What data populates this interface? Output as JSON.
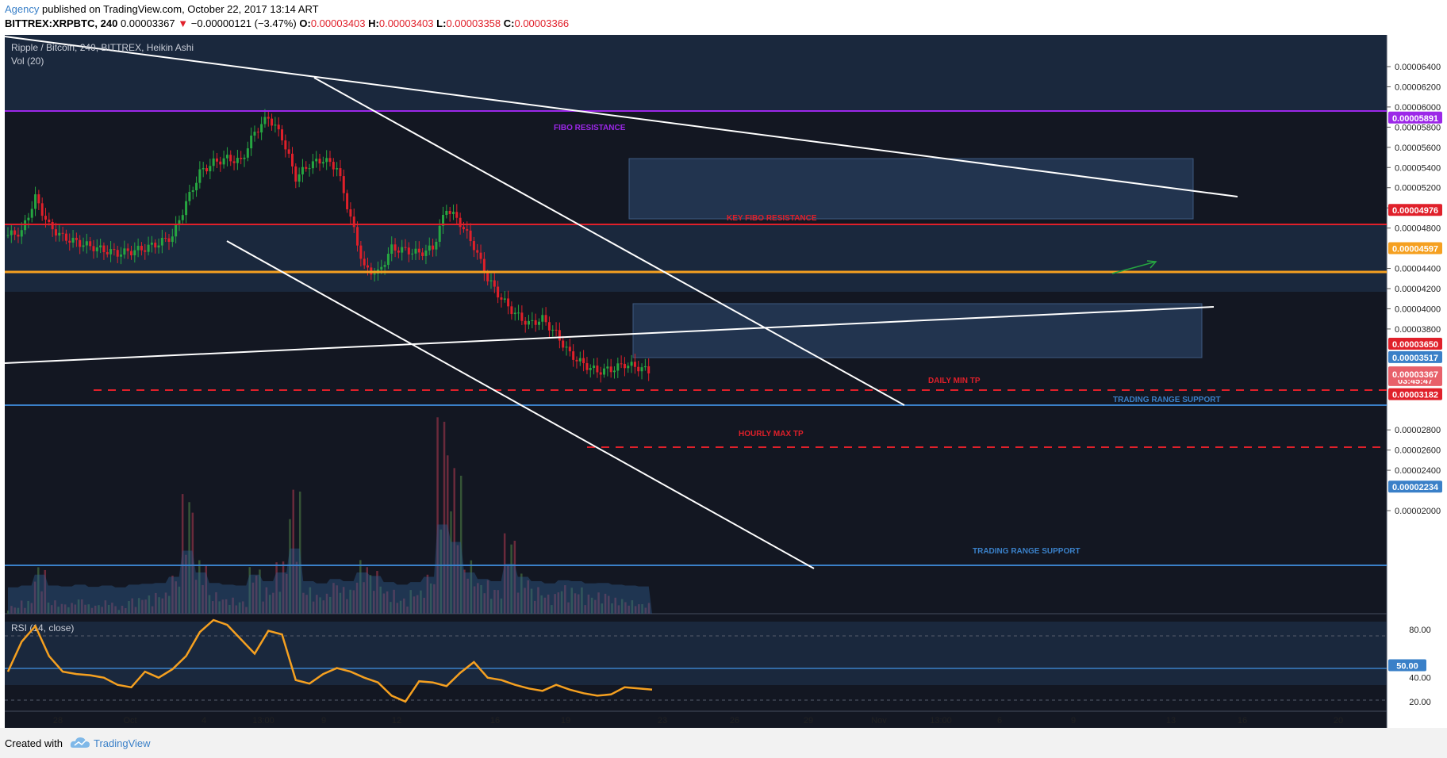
{
  "header": {
    "publisher": "Agency",
    "published_text": " published on TradingView.com, October 22, 2017 13:14 ART",
    "symbol": "BITTREX:XRPBTC, 240",
    "last_price": "0.00003367",
    "change_arrow": "▼",
    "change": "−0.00000121 (−3.47%)",
    "o_label": "O:",
    "o_value": "0.00003403",
    "h_label": "H:",
    "h_value": "0.00003403",
    "l_label": "L:",
    "l_value": "0.00003358",
    "c_label": "C:",
    "c_value": "0.00003366"
  },
  "main_pane": {
    "title": "Ripple / Bitcoin, 240, BITTREX, Heikin Ashi",
    "volume_label": "Vol (20)"
  },
  "rsi_pane": {
    "title": "RSI (14, close)"
  },
  "annotations": {
    "fibo_resistance": "FIBO RESISTANCE",
    "key_fibo_resistance": "KEY FIBO RESISTANCE",
    "daily_min_tp": "DAILY MIN TP",
    "trading_range_support_1": "TRADING RANGE SUPPORT",
    "hourly_max_tp": "HOURLY MAX TP",
    "trading_range_support_2": "TRADING RANGE SUPPORT"
  },
  "footer": {
    "created_with": "Created with",
    "brand": "TradingView"
  },
  "colors": {
    "background": "#131722",
    "band": "#1c2a40",
    "candle_up": "#26a641",
    "candle_down": "#e0202a",
    "fibo": "#9c27e8",
    "key_fibo": "#e0202a",
    "orange": "#f5a020",
    "support": "#3a80c8",
    "rsi": "#f5a020"
  },
  "chart_data": {
    "type": "candlestick",
    "price_axis": {
      "ticks": [
        "0.00006400",
        "0.00006200",
        "0.00006000",
        "0.00005800",
        "0.00005600",
        "0.00005400",
        "0.00005200",
        "0.00005000",
        "0.00004800",
        "0.00004400",
        "0.00004200",
        "0.00004000",
        "0.00003800",
        "0.00002800",
        "0.00002600",
        "0.00002400",
        "0.00002000"
      ],
      "range": [
        1.87e-05,
        6.55e-05
      ]
    },
    "time_axis": {
      "labels": [
        "28",
        "Oct",
        "4",
        "13:00",
        "9",
        "12",
        "16",
        "19",
        "23",
        "26",
        "29",
        "Nov",
        "13:00",
        "6",
        "9",
        "13",
        "16",
        "20"
      ]
    },
    "levels": [
      {
        "name": "fibo",
        "label": "0.00005891",
        "price": 5.891e-05
      },
      {
        "name": "key-fibo",
        "label": "0.00004976",
        "price": 4.976e-05
      },
      {
        "name": "orange",
        "label": "0.00004597",
        "price": 4.597e-05
      },
      {
        "name": "daily-min-tp",
        "label": "0.00003650",
        "price": 3.65e-05
      },
      {
        "name": "support-1",
        "label": "0.00003517",
        "price": 3.517e-05
      },
      {
        "name": "last-close",
        "label": "0.00003366",
        "price": 3.366e-05
      },
      {
        "name": "countdown",
        "label": "03:45:47",
        "price": 3.29e-05
      },
      {
        "name": "last-price",
        "label": "0.00003367",
        "price": 3.367e-05
      },
      {
        "name": "hourly-max-tp",
        "label": "0.00003182",
        "price": 3.182e-05
      },
      {
        "name": "support-2",
        "label": "0.00002234",
        "price": 2.234e-05
      }
    ],
    "price_path": [
      4.73e-05,
      4.76e-05,
      5.1e-05,
      4.82e-05,
      4.71e-05,
      4.66e-05,
      4.62e-05,
      4.58e-05,
      4.55e-05,
      4.57e-05,
      4.6e-05,
      4.65e-05,
      4.72e-05,
      5.05e-05,
      5.35e-05,
      5.45e-05,
      5.49e-05,
      5.46e-05,
      5.75e-05,
      5.9e-05,
      5.7e-05,
      5.3e-05,
      5.43e-05,
      5.48e-05,
      5.4e-05,
      4.9e-05,
      4.4e-05,
      4.35e-05,
      4.6e-05,
      4.58e-05,
      4.55e-05,
      4.6e-05,
      5e-05,
      4.85e-05,
      4.62e-05,
      4.3e-05,
      4.1e-05,
      3.95e-05,
      3.85e-05,
      3.9e-05,
      3.75e-05,
      3.55e-05,
      3.45e-05,
      3.38e-05,
      3.4e-05,
      3.45e-05,
      3.42e-05,
      3.37e-05
    ],
    "volume_path": [
      6,
      10,
      35,
      10,
      8,
      12,
      7,
      10,
      6,
      12,
      14,
      16,
      30,
      90,
      40,
      16,
      12,
      10,
      35,
      20,
      40,
      95,
      20,
      15,
      25,
      20,
      40,
      32,
      18,
      12,
      18,
      30,
      150,
      110,
      40,
      25,
      20,
      60,
      30,
      20,
      15,
      22,
      20,
      15,
      16,
      12,
      10,
      8
    ],
    "rsi_axis": {
      "ticks": [
        "80.00",
        "40.00",
        "20.00"
      ],
      "highlight": "50.00",
      "range": [
        14,
        90
      ]
    },
    "rsi_path": [
      45,
      70,
      83,
      58,
      45,
      43,
      42,
      40,
      34,
      32,
      45,
      40,
      47,
      58,
      78,
      88,
      84,
      72,
      60,
      79,
      76,
      38,
      35,
      43,
      48,
      45,
      40,
      36,
      25,
      20,
      37,
      36,
      33,
      44,
      53,
      40,
      38,
      34,
      31,
      29,
      34,
      30,
      27,
      25,
      26,
      32,
      31,
      30
    ]
  }
}
